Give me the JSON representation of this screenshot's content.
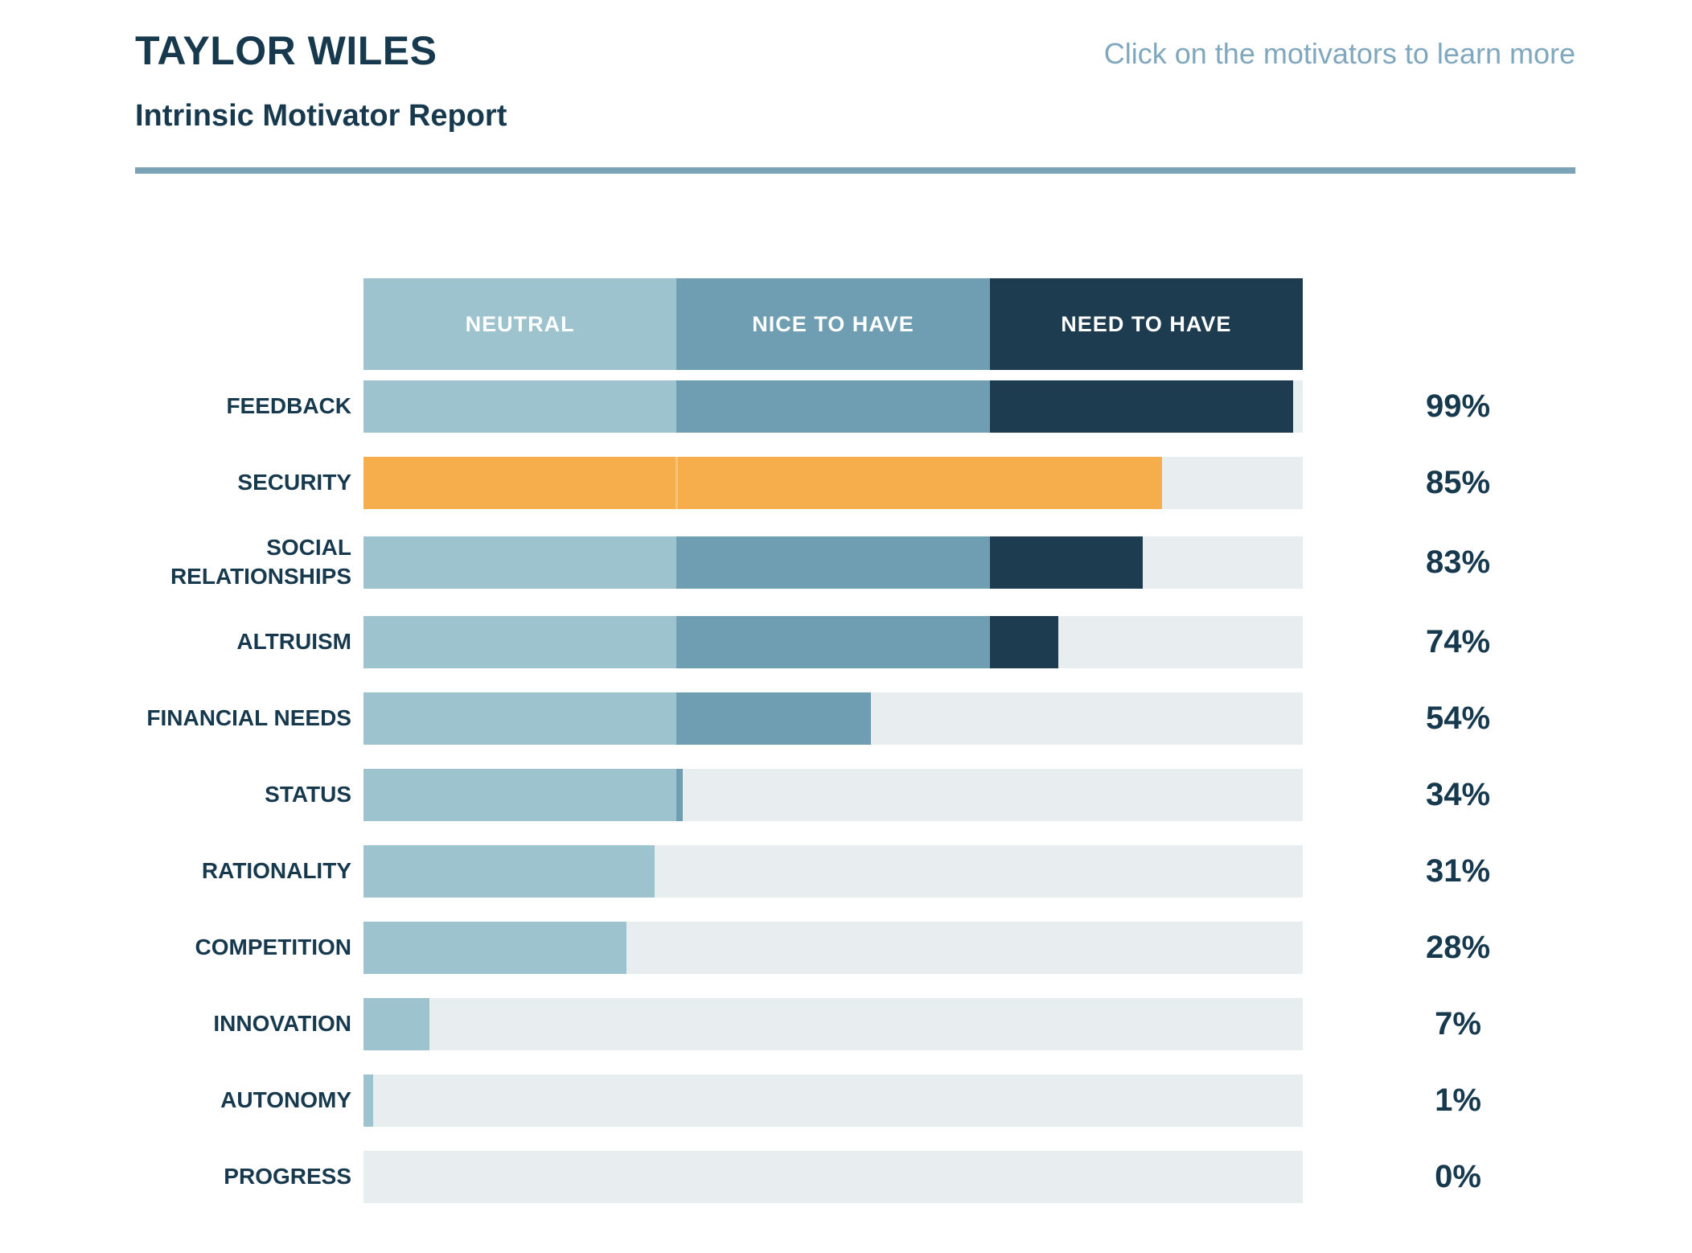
{
  "header": {
    "person_name": "TAYLOR WILES",
    "report_title": "Intrinsic Motivator Report",
    "hint": "Click on the motivators to learn more"
  },
  "chart_data": {
    "type": "bar",
    "orientation": "horizontal",
    "unit": "%",
    "xlim": [
      0,
      100
    ],
    "grid": false,
    "legend_position": "top",
    "scale_segments": [
      {
        "label": "NEUTRAL",
        "range": [
          0,
          33.3
        ],
        "color": "#9DC3CE"
      },
      {
        "label": "NICE TO HAVE",
        "range": [
          33.3,
          66.7
        ],
        "color": "#6F9EB2"
      },
      {
        "label": "NEED TO HAVE",
        "range": [
          66.7,
          100
        ],
        "color": "#1E3C50"
      }
    ],
    "categories": [
      "FEEDBACK",
      "SECURITY",
      "SOCIAL RELATIONSHIPS",
      "ALTRUISM",
      "FINANCIAL NEEDS",
      "STATUS",
      "RATIONALITY",
      "COMPETITION",
      "INNOVATION",
      "AUTONOMY",
      "PROGRESS"
    ],
    "values": [
      99,
      85,
      83,
      74,
      54,
      34,
      31,
      28,
      7,
      1,
      0
    ],
    "value_labels": [
      "99%",
      "85%",
      "83%",
      "74%",
      "54%",
      "34%",
      "31%",
      "28%",
      "7%",
      "1%",
      "0%"
    ],
    "highlighted_category": "SECURITY",
    "highlight_color": "#F6AD4B",
    "track_color": "#E8EDF0"
  },
  "colors": {
    "text_navy": "#17394E",
    "steel_blue_accent": "#7BA3B8",
    "hint_blue": "#7FA7BE",
    "background": "#FFFFFF"
  }
}
